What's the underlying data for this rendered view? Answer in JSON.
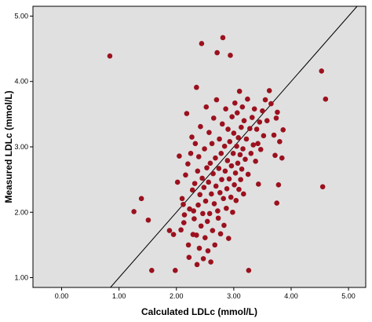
{
  "chart_data": {
    "type": "scatter",
    "title": "",
    "xlabel": "Calculated LDLc (mmol/L)",
    "ylabel": "Measured LDLc (mmol/L)",
    "xlim": [
      -0.5,
      5.3
    ],
    "ylim": [
      0.85,
      5.15
    ],
    "x_ticks": [
      "0.00",
      "1.00",
      "2.00",
      "3.00",
      "4.00",
      "5.00"
    ],
    "y_ticks": [
      "1.00",
      "2.00",
      "3.00",
      "4.00",
      "5.00"
    ],
    "grid": false,
    "background": "#e0e0e0",
    "marker_color": "#9b111e",
    "reference_line": {
      "from": [
        -0.5,
        -0.5
      ],
      "to": [
        5.3,
        5.3
      ],
      "color": "#000000"
    },
    "points": [
      [
        0.84,
        4.39
      ],
      [
        1.26,
        2.01
      ],
      [
        1.39,
        2.21
      ],
      [
        1.51,
        1.88
      ],
      [
        1.57,
        1.11
      ],
      [
        1.88,
        1.72
      ],
      [
        1.95,
        1.66
      ],
      [
        1.98,
        1.11
      ],
      [
        2.02,
        2.46
      ],
      [
        2.05,
        2.86
      ],
      [
        2.08,
        1.73
      ],
      [
        2.1,
        2.21
      ],
      [
        2.12,
        2.12
      ],
      [
        2.13,
        1.84
      ],
      [
        2.14,
        1.96
      ],
      [
        2.16,
        2.57
      ],
      [
        2.18,
        3.51
      ],
      [
        2.2,
        2.74
      ],
      [
        2.21,
        1.5
      ],
      [
        2.22,
        1.31
      ],
      [
        2.23,
        2.05
      ],
      [
        2.25,
        2.9
      ],
      [
        2.27,
        3.15
      ],
      [
        2.28,
        2.34
      ],
      [
        2.29,
        1.66
      ],
      [
        2.3,
        2.02
      ],
      [
        2.31,
        1.9
      ],
      [
        2.32,
        2.44
      ],
      [
        2.33,
        3.05
      ],
      [
        2.35,
        1.65
      ],
      [
        2.35,
        3.91
      ],
      [
        2.36,
        1.2
      ],
      [
        2.37,
        2.63
      ],
      [
        2.38,
        2.11
      ],
      [
        2.39,
        2.85
      ],
      [
        2.4,
        1.45
      ],
      [
        2.41,
        2.27
      ],
      [
        2.42,
        3.31
      ],
      [
        2.43,
        1.79
      ],
      [
        2.44,
        4.58
      ],
      [
        2.45,
        2.52
      ],
      [
        2.46,
        1.98
      ],
      [
        2.47,
        1.29
      ],
      [
        2.48,
        2.38
      ],
      [
        2.49,
        2.97
      ],
      [
        2.5,
        1.61
      ],
      [
        2.51,
        2.17
      ],
      [
        2.52,
        3.61
      ],
      [
        2.53,
        2.68
      ],
      [
        2.54,
        1.86
      ],
      [
        2.55,
        1.41
      ],
      [
        2.56,
        2.46
      ],
      [
        2.57,
        3.22
      ],
      [
        2.58,
        1.98
      ],
      [
        2.59,
        2.75
      ],
      [
        2.6,
        1.24
      ],
      [
        2.61,
        2.28
      ],
      [
        2.62,
        3.05
      ],
      [
        2.63,
        1.72
      ],
      [
        2.64,
        2.59
      ],
      [
        2.65,
        3.44
      ],
      [
        2.66,
        2.13
      ],
      [
        2.67,
        1.5
      ],
      [
        2.68,
        2.83
      ],
      [
        2.69,
        2.4
      ],
      [
        2.7,
        3.72
      ],
      [
        2.71,
        4.44
      ],
      [
        2.72,
        2.02
      ],
      [
        2.73,
        1.91
      ],
      [
        2.74,
        2.67
      ],
      [
        2.75,
        3.12
      ],
      [
        2.76,
        2.3
      ],
      [
        2.77,
        1.67
      ],
      [
        2.78,
        2.9
      ],
      [
        2.79,
        2.5
      ],
      [
        2.8,
        3.35
      ],
      [
        2.81,
        4.67
      ],
      [
        2.82,
        2.21
      ],
      [
        2.83,
        1.8
      ],
      [
        2.84,
        3.01
      ],
      [
        2.85,
        2.63
      ],
      [
        2.86,
        3.58
      ],
      [
        2.87,
        2.06
      ],
      [
        2.88,
        2.36
      ],
      [
        2.89,
        2.79
      ],
      [
        2.9,
        3.27
      ],
      [
        2.91,
        1.6
      ],
      [
        2.92,
        2.51
      ],
      [
        2.93,
        3.08
      ],
      [
        2.94,
        4.4
      ],
      [
        2.95,
        2.23
      ],
      [
        2.96,
        2.71
      ],
      [
        2.97,
        3.46
      ],
      [
        2.98,
        2.0
      ],
      [
        2.99,
        2.9
      ],
      [
        3.0,
        3.21
      ],
      [
        3.01,
        2.42
      ],
      [
        3.02,
        3.67
      ],
      [
        3.03,
        2.6
      ],
      [
        3.04,
        2.18
      ],
      [
        3.05,
        3.01
      ],
      [
        3.06,
        3.52
      ],
      [
        3.07,
        2.75
      ],
      [
        3.08,
        3.14
      ],
      [
        3.09,
        2.35
      ],
      [
        3.1,
        3.85
      ],
      [
        3.11,
        2.88
      ],
      [
        3.12,
        2.5
      ],
      [
        3.13,
        3.3
      ],
      [
        3.14,
        2.66
      ],
      [
        3.15,
        3.61
      ],
      [
        3.16,
        2.97
      ],
      [
        3.17,
        2.28
      ],
      [
        3.18,
        3.4
      ],
      [
        3.2,
        2.81
      ],
      [
        3.22,
        3.12
      ],
      [
        3.24,
        3.73
      ],
      [
        3.25,
        2.58
      ],
      [
        3.26,
        1.11
      ],
      [
        3.28,
        3.28
      ],
      [
        3.3,
        2.9
      ],
      [
        3.32,
        3.45
      ],
      [
        3.34,
        3.03
      ],
      [
        3.36,
        3.58
      ],
      [
        3.38,
        2.78
      ],
      [
        3.4,
        3.27
      ],
      [
        3.42,
        3.05
      ],
      [
        3.43,
        2.43
      ],
      [
        3.45,
        3.38
      ],
      [
        3.47,
        2.96
      ],
      [
        3.5,
        3.55
      ],
      [
        3.52,
        3.17
      ],
      [
        3.55,
        3.72
      ],
      [
        3.58,
        3.4
      ],
      [
        3.62,
        3.86
      ],
      [
        3.65,
        3.66
      ],
      [
        3.7,
        3.18
      ],
      [
        3.72,
        2.87
      ],
      [
        3.74,
        3.44
      ],
      [
        3.75,
        2.14
      ],
      [
        3.76,
        3.53
      ],
      [
        3.78,
        2.42
      ],
      [
        3.8,
        3.08
      ],
      [
        3.84,
        2.83
      ],
      [
        3.86,
        3.26
      ],
      [
        4.53,
        4.16
      ],
      [
        4.55,
        2.39
      ],
      [
        4.6,
        3.73
      ]
    ]
  }
}
